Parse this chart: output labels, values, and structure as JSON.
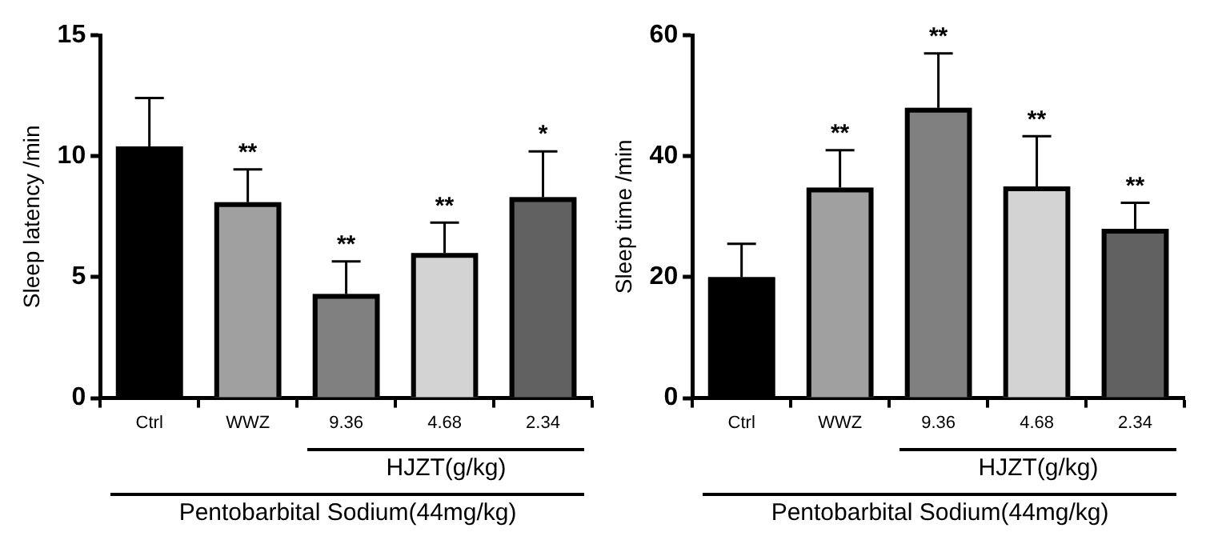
{
  "chart_data": [
    {
      "type": "bar",
      "ylabel": "Sleep latency /min",
      "categories": [
        "Ctrl",
        "WWZ",
        "9.36",
        "4.68",
        "2.34"
      ],
      "values": [
        10.4,
        8.1,
        4.3,
        6.0,
        8.3
      ],
      "colors": [
        "#000000",
        "#a0a0a0",
        "#808080",
        "#d3d3d3",
        "#606060"
      ],
      "errors": [
        [
          10.4,
          12.4
        ],
        [
          8.1,
          9.45
        ],
        [
          4.3,
          5.65
        ],
        [
          6.0,
          7.25
        ],
        [
          8.3,
          10.2
        ]
      ],
      "value_labels": [
        null,
        "**",
        "**",
        "**",
        "*"
      ],
      "ylim": [
        0,
        15
      ],
      "yticks": [
        0,
        5,
        10,
        15
      ],
      "grid": false,
      "legend": false,
      "annotations": [
        "HJZT(g/kg)",
        "Pentobarbital Sodium(44mg/kg)"
      ]
    },
    {
      "type": "bar",
      "ylabel": "Sleep time /min",
      "categories": [
        "Ctrl",
        "WWZ",
        "9.36",
        "4.68",
        "2.34"
      ],
      "values": [
        20,
        34.8,
        48,
        35,
        28
      ],
      "colors": [
        "#000000",
        "#a0a0a0",
        "#808080",
        "#d3d3d3",
        "#606060"
      ],
      "errors": [
        [
          20,
          25.5
        ],
        [
          34.8,
          41
        ],
        [
          48,
          57
        ],
        [
          35,
          43.3
        ],
        [
          28,
          32.3
        ]
      ],
      "value_labels": [
        null,
        "**",
        "**",
        "**",
        "**"
      ],
      "ylim": [
        0,
        60
      ],
      "yticks": [
        0,
        20,
        40,
        60
      ],
      "grid": false,
      "legend": false,
      "annotations": [
        "HJZT(g/kg)",
        "Pentobarbital Sodium(44mg/kg)"
      ]
    }
  ]
}
